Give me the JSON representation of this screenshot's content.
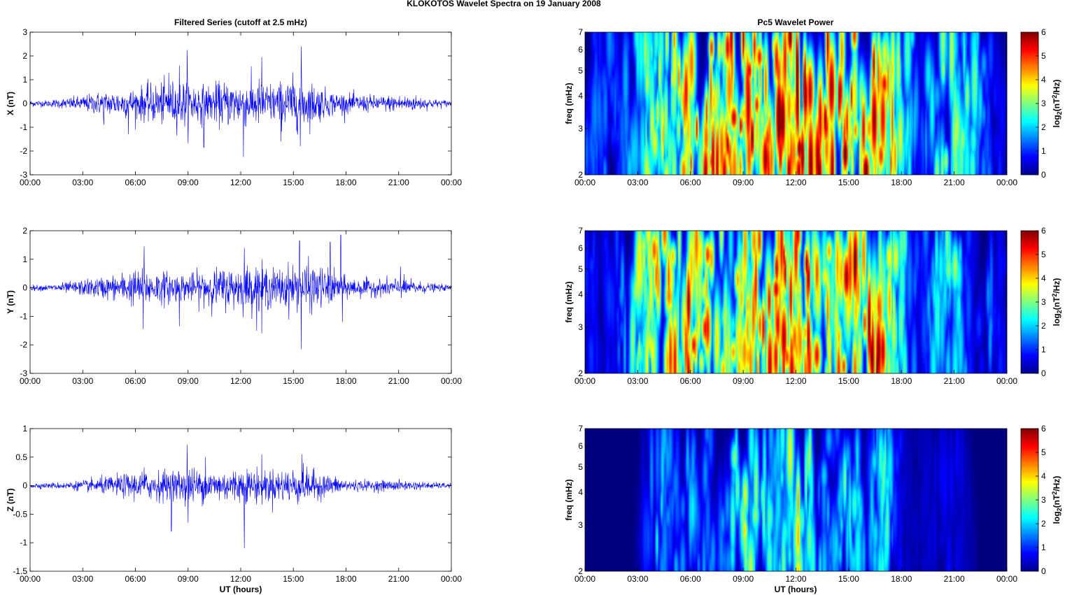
{
  "figure": {
    "title": "KLOKOTOS Wavelet Spectra on 19 January   2008",
    "left_title": "Filtered Series (cutoff at 2.5 mHz)",
    "right_title": "Pc5 Wavelet Power",
    "xlabel": "UT (hours)"
  },
  "chart_data": [
    {
      "type": "line",
      "name": "X",
      "ylabel": "X (nT)",
      "ylim": [
        -3,
        3
      ],
      "yticks": [
        "-3",
        "-2",
        "-1",
        "0",
        "1",
        "2",
        "3"
      ],
      "xticks": [
        "00:00",
        "03:00",
        "06:00",
        "09:00",
        "12:00",
        "15:00",
        "18:00",
        "21:00",
        "00:00"
      ],
      "xlim_hours": [
        0,
        24
      ],
      "envelope_hours": [
        0,
        1,
        2,
        3,
        4,
        5,
        6,
        7,
        8,
        9,
        10,
        11,
        12,
        13,
        14,
        15,
        16,
        17,
        18,
        19,
        20,
        21,
        22,
        23,
        24
      ],
      "envelope_nT": [
        0.15,
        0.15,
        0.25,
        0.35,
        0.55,
        0.6,
        0.7,
        0.9,
        1.0,
        1.1,
        0.8,
        1.0,
        1.0,
        1.1,
        0.9,
        1.2,
        1.0,
        0.6,
        0.45,
        0.4,
        0.35,
        0.4,
        0.35,
        0.2,
        0.15
      ],
      "peaks": [
        {
          "t": 5.6,
          "v": -1.3
        },
        {
          "t": 8.5,
          "v": 1.6
        },
        {
          "t": 8.95,
          "v": 2.25
        },
        {
          "t": 9.9,
          "v": -1.85
        },
        {
          "t": 12.15,
          "v": -2.25
        },
        {
          "t": 13.2,
          "v": 1.95
        },
        {
          "t": 14.3,
          "v": -1.6
        },
        {
          "t": 15.45,
          "v": 2.4
        },
        {
          "t": 15.4,
          "v": -1.8
        },
        {
          "t": 7.9,
          "v": 1.3
        },
        {
          "t": 4.2,
          "v": -0.9
        }
      ]
    },
    {
      "type": "line",
      "name": "Y",
      "ylabel": "Y (nT)",
      "ylim": [
        -3,
        2
      ],
      "yticks": [
        "-3",
        "-2",
        "-1",
        "0",
        "1",
        "2"
      ],
      "xticks": [
        "00:00",
        "03:00",
        "06:00",
        "09:00",
        "12:00",
        "15:00",
        "18:00",
        "21:00",
        "00:00"
      ],
      "xlim_hours": [
        0,
        24
      ],
      "envelope_hours": [
        0,
        1,
        2,
        3,
        4,
        5,
        6,
        7,
        8,
        9,
        10,
        11,
        12,
        13,
        14,
        15,
        16,
        17,
        18,
        19,
        20,
        21,
        22,
        23,
        24
      ],
      "envelope_nT": [
        0.1,
        0.12,
        0.2,
        0.3,
        0.4,
        0.5,
        0.7,
        0.65,
        0.6,
        0.5,
        0.7,
        0.75,
        0.8,
        0.9,
        0.7,
        0.9,
        0.9,
        0.7,
        0.4,
        0.35,
        0.3,
        0.4,
        0.25,
        0.15,
        0.1
      ],
      "peaks": [
        {
          "t": 6.5,
          "v": 1.45
        },
        {
          "t": 6.45,
          "v": -1.45
        },
        {
          "t": 8.5,
          "v": -1.35
        },
        {
          "t": 12.2,
          "v": 1.4
        },
        {
          "t": 13.2,
          "v": -1.6
        },
        {
          "t": 15.35,
          "v": 1.65
        },
        {
          "t": 15.45,
          "v": -2.15
        },
        {
          "t": 17.7,
          "v": 1.85
        },
        {
          "t": 17.1,
          "v": 1.6
        },
        {
          "t": 17.8,
          "v": -1.2
        },
        {
          "t": 21.1,
          "v": 0.75
        }
      ]
    },
    {
      "type": "line",
      "name": "Z",
      "ylabel": "Z (nT)",
      "ylim": [
        -1.5,
        1
      ],
      "yticks": [
        "-1.5",
        "-1",
        "-0.5",
        "0",
        "0.5",
        "1"
      ],
      "xticks": [
        "00:00",
        "03:00",
        "06:00",
        "09:00",
        "12:00",
        "15:00",
        "18:00",
        "21:00",
        "00:00"
      ],
      "xlim_hours": [
        0,
        24
      ],
      "envelope_hours": [
        0,
        1,
        2,
        3,
        4,
        5,
        6,
        7,
        8,
        9,
        10,
        11,
        12,
        13,
        14,
        15,
        16,
        17,
        18,
        19,
        20,
        21,
        22,
        23,
        24
      ],
      "envelope_nT": [
        0.05,
        0.05,
        0.07,
        0.1,
        0.15,
        0.2,
        0.25,
        0.28,
        0.3,
        0.35,
        0.3,
        0.3,
        0.33,
        0.35,
        0.3,
        0.35,
        0.3,
        0.2,
        0.12,
        0.1,
        0.1,
        0.1,
        0.08,
        0.06,
        0.05
      ],
      "peaks": [
        {
          "t": 8.05,
          "v": -0.8
        },
        {
          "t": 8.95,
          "v": 0.72
        },
        {
          "t": 9.0,
          "v": -0.65
        },
        {
          "t": 12.2,
          "v": -1.1
        },
        {
          "t": 13.2,
          "v": 0.55
        },
        {
          "t": 10.0,
          "v": 0.5
        },
        {
          "t": 15.5,
          "v": 0.55
        },
        {
          "t": 6.5,
          "v": 0.32
        }
      ]
    },
    {
      "type": "heatmap",
      "name": "X power",
      "ylabel": "freq (mHz)",
      "ylim": [
        2,
        7
      ],
      "yscale": "log",
      "yticks": [
        "2",
        "3",
        "4",
        "5",
        "6",
        "7"
      ],
      "xticks": [
        "00:00",
        "03:00",
        "06:00",
        "09:00",
        "12:00",
        "15:00",
        "18:00",
        "21:00",
        "00:00"
      ],
      "colorbar_label": "log2(nT^2/Hz)",
      "colorbar_ticks": [
        "0",
        "1",
        "2",
        "3",
        "4",
        "5",
        "6"
      ],
      "clim": [
        0,
        6
      ],
      "activity_hours": [
        0,
        1,
        2,
        3,
        4,
        5,
        6,
        7,
        8,
        9,
        10,
        11,
        12,
        13,
        14,
        15,
        16,
        17,
        18,
        19,
        20,
        21,
        22,
        23,
        24
      ],
      "activity_level": [
        1.4,
        1.6,
        1.3,
        2.6,
        3.6,
        4.4,
        4.8,
        5.2,
        5.2,
        5.6,
        5.6,
        5.8,
        5.8,
        5.6,
        5.4,
        5.8,
        5.6,
        5.2,
        3.2,
        1.2,
        2.8,
        3.2,
        2.8,
        1.2,
        0.6
      ]
    },
    {
      "type": "heatmap",
      "name": "Y power",
      "ylabel": "freq (mHz)",
      "ylim": [
        2,
        7
      ],
      "yscale": "log",
      "yticks": [
        "2",
        "3",
        "4",
        "5",
        "6",
        "7"
      ],
      "xticks": [
        "00:00",
        "03:00",
        "06:00",
        "09:00",
        "12:00",
        "15:00",
        "18:00",
        "21:00",
        "00:00"
      ],
      "colorbar_label": "log2(nT^2/Hz)",
      "colorbar_ticks": [
        "0",
        "1",
        "2",
        "3",
        "4",
        "5",
        "6"
      ],
      "clim": [
        0,
        6
      ],
      "activity_hours": [
        0,
        1,
        2,
        3,
        4,
        5,
        6,
        7,
        8,
        9,
        10,
        11,
        12,
        13,
        14,
        15,
        16,
        17,
        18,
        19,
        20,
        21,
        22,
        23,
        24
      ],
      "activity_level": [
        1.0,
        0.8,
        1.4,
        3.4,
        4.6,
        4.6,
        5.4,
        4.6,
        3.6,
        4.0,
        5.0,
        5.6,
        5.0,
        5.8,
        3.8,
        5.8,
        5.6,
        5.4,
        3.0,
        0.8,
        2.4,
        3.0,
        0.6,
        1.6,
        0.4
      ]
    },
    {
      "type": "heatmap",
      "name": "Z power",
      "ylabel": "freq (mHz)",
      "ylim": [
        2,
        7
      ],
      "yscale": "log",
      "yticks": [
        "2",
        "3",
        "4",
        "5",
        "6",
        "7"
      ],
      "xticks": [
        "00:00",
        "03:00",
        "06:00",
        "09:00",
        "12:00",
        "15:00",
        "18:00",
        "21:00",
        "00:00"
      ],
      "colorbar_label": "log2(nT^2/Hz)",
      "colorbar_ticks": [
        "0",
        "1",
        "2",
        "3",
        "4",
        "5",
        "6"
      ],
      "clim": [
        0,
        6
      ],
      "activity_hours": [
        0,
        1,
        2,
        3,
        4,
        5,
        6,
        7,
        8,
        9,
        10,
        11,
        12,
        13,
        14,
        15,
        16,
        17,
        18,
        19,
        20,
        21,
        22,
        23,
        24
      ],
      "activity_level": [
        0.0,
        0.0,
        0.0,
        0.2,
        2.2,
        1.6,
        2.0,
        1.4,
        1.8,
        3.6,
        2.6,
        2.2,
        4.0,
        2.6,
        1.6,
        3.0,
        1.4,
        3.0,
        0.6,
        0.4,
        0.6,
        0.8,
        0.2,
        0.0,
        0.0
      ]
    }
  ]
}
